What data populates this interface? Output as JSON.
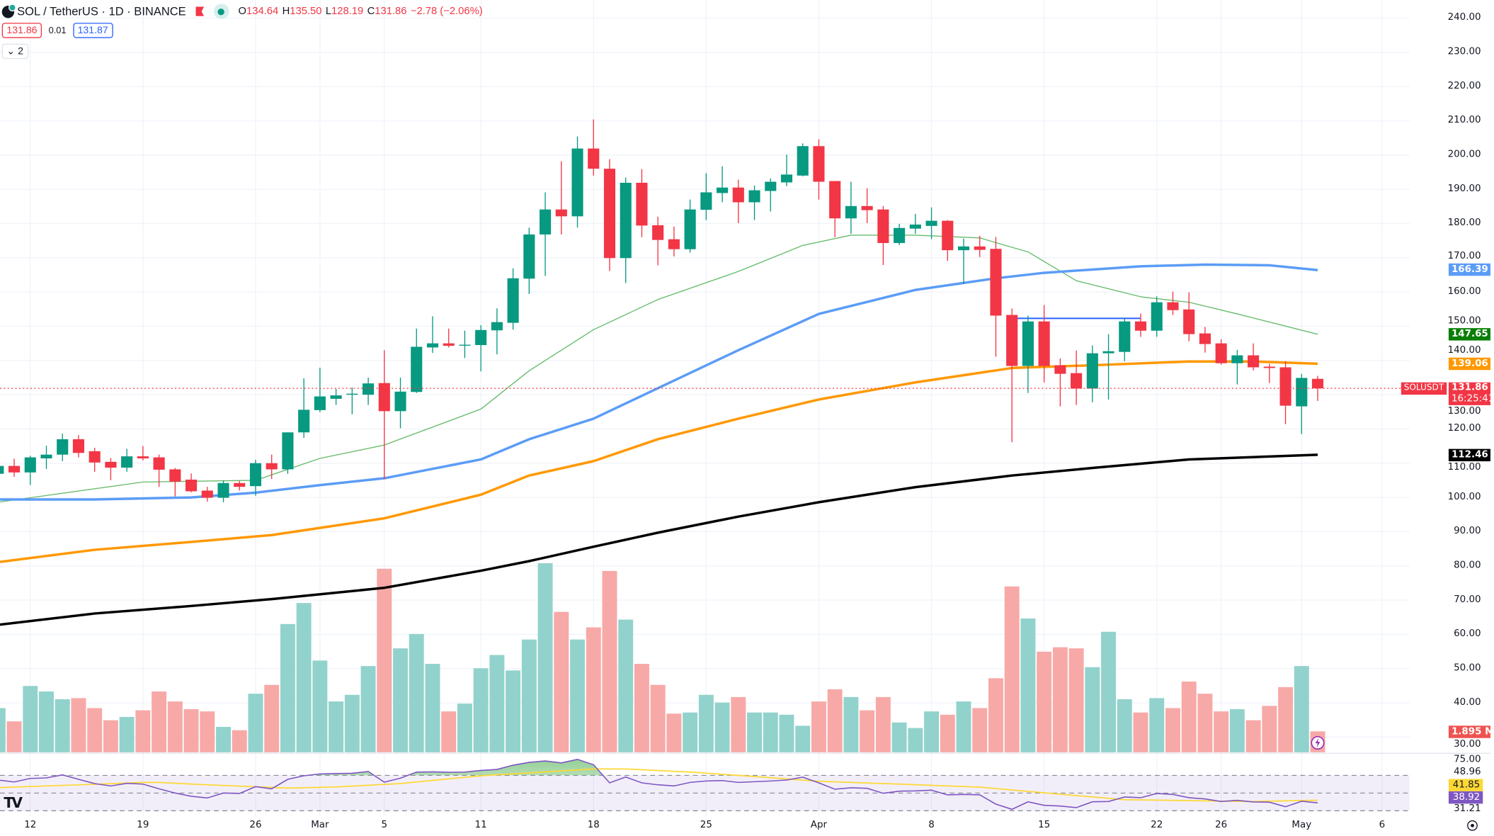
{
  "header": {
    "symbol_title": "SOL / TetherUS · 1D · BINANCE",
    "open_label": "O",
    "open": "134.64",
    "high_label": "H",
    "high": "135.50",
    "low_label": "L",
    "low": "128.19",
    "close_label": "C",
    "close": "131.86",
    "change": "−2.78 (−2.06%)",
    "bid": "131.86",
    "spread": "0.01",
    "ask": "131.87",
    "indicators_toggle": "⌄ 2"
  },
  "price_axis": {
    "ticks": [
      "240.00",
      "230.00",
      "220.00",
      "210.00",
      "200.00",
      "190.00",
      "180.00",
      "170.00",
      "160.00",
      "150.00",
      "140.00",
      "130.00",
      "120.00",
      "110.00",
      "100.00",
      "90.00",
      "80.00",
      "70.00",
      "60.00",
      "50.00",
      "40.00",
      "30.00"
    ],
    "ma_labels": [
      {
        "value": "166.39",
        "color": "#5b9cf6",
        "price": 166.39
      },
      {
        "value": "147.65",
        "color": "#0a7e07",
        "price": 147.65
      },
      {
        "value": "139.06",
        "color": "#ff9800",
        "price": 139.06
      },
      {
        "value": "112.46",
        "color": "#000000",
        "price": 112.46
      }
    ],
    "symbol_tag": "SOLUSDT",
    "last_price": "131.86",
    "countdown": "16:25:41",
    "volume_label": "1.895 M"
  },
  "rsi_axis": {
    "top": "75.00",
    "upper": "48.96",
    "ma_value": "41.85",
    "rsi_value": "38.92",
    "bottom": "31.21"
  },
  "date_axis": [
    {
      "label": "12",
      "date": "Feb 12"
    },
    {
      "label": "19",
      "date": "Feb 19"
    },
    {
      "label": "26",
      "date": "Feb 26"
    },
    {
      "label": "Mar",
      "date": "Mar 1"
    },
    {
      "label": "5",
      "date": "Mar 5"
    },
    {
      "label": "11",
      "date": "Mar 11"
    },
    {
      "label": "18",
      "date": "Mar 18"
    },
    {
      "label": "25",
      "date": "Mar 25"
    },
    {
      "label": "Apr",
      "date": "Apr 1"
    },
    {
      "label": "8",
      "date": "Apr 8"
    },
    {
      "label": "15",
      "date": "Apr 15"
    },
    {
      "label": "22",
      "date": "Apr 22"
    },
    {
      "label": "26",
      "date": "Apr 26"
    },
    {
      "label": "May",
      "date": "May 1"
    },
    {
      "label": "6",
      "date": "May 6"
    }
  ],
  "colors": {
    "up": "#089981",
    "down": "#f23645",
    "up_vol": "#92d2cc",
    "down_vol": "#f7a9a7",
    "rsi": "#7e57c2",
    "rsi_ma": "#fdd835",
    "ray": "#2962ff"
  },
  "icons": {
    "logo": "tradingview-logo",
    "flag": "flag-icon",
    "market_status": "green-dot-icon",
    "alert": "lightning-icon",
    "settings": "settings-icon"
  },
  "chart_data": {
    "type": "candlestick",
    "symbol": "SOLUSDT",
    "ylim": [
      30,
      240
    ],
    "candles_format": [
      "date",
      "open",
      "high",
      "low",
      "close",
      "volume_M"
    ],
    "candles": [
      [
        "Feb 10",
        106.9,
        110,
        105.5,
        109.2,
        4.0
      ],
      [
        "Feb 11",
        109.2,
        111.3,
        106,
        107.3,
        2.8
      ],
      [
        "Feb 12",
        107.3,
        112.2,
        103.6,
        111.7,
        6.0
      ],
      [
        "Feb 13",
        111.4,
        115.1,
        108.3,
        112.5,
        5.5
      ],
      [
        "Feb 14",
        112.5,
        118.6,
        110.6,
        117,
        4.8
      ],
      [
        "Feb 15",
        117,
        118.2,
        111.7,
        113,
        4.9
      ],
      [
        "Feb 16",
        113.5,
        114.5,
        107.5,
        110.2,
        4.0
      ],
      [
        "Feb 17",
        110.4,
        111.5,
        105,
        108.7,
        2.9
      ],
      [
        "Feb 18",
        108.7,
        114.2,
        107.5,
        112,
        3.2
      ],
      [
        "Feb 19",
        112,
        115,
        110.8,
        111.4,
        3.8
      ],
      [
        "Feb 20",
        111.7,
        112.5,
        103.1,
        108.1,
        5.5
      ],
      [
        "Feb 21",
        108.2,
        108.6,
        100.3,
        104.6,
        4.6
      ],
      [
        "Feb 22",
        105.2,
        107,
        101.5,
        101.8,
        3.9
      ],
      [
        "Feb 23",
        102,
        103.1,
        98.8,
        99.9,
        3.7
      ],
      [
        "Feb 24",
        99.9,
        105,
        98.6,
        104.2,
        2.3
      ],
      [
        "Feb 25",
        104.2,
        104.8,
        102,
        103.1,
        2.0
      ],
      [
        "Feb 26",
        103.3,
        111,
        100.5,
        110,
        5.3
      ],
      [
        "Feb 27",
        110,
        112.5,
        105.4,
        108.2,
        6.1
      ],
      [
        "Feb 28",
        108.2,
        119,
        106.9,
        119,
        11.6
      ],
      [
        "Feb 29",
        119,
        134.8,
        117.4,
        125.6,
        13.5
      ],
      [
        "Mar 1",
        125.5,
        137.9,
        124.9,
        129.5,
        8.3
      ],
      [
        "Mar 2",
        128.8,
        131.7,
        127,
        129.8,
        4.6
      ],
      [
        "Mar 3",
        130,
        132.1,
        124.3,
        130.3,
        5.2
      ],
      [
        "Mar 4",
        130,
        135,
        127,
        133.3,
        7.8
      ],
      [
        "Mar 5",
        133.4,
        143,
        105.3,
        125.2,
        16.6
      ],
      [
        "Mar 6",
        125.2,
        135,
        120.2,
        130.9,
        9.4
      ],
      [
        "Mar 7",
        130.8,
        149.3,
        130.5,
        144,
        10.7
      ],
      [
        "Mar 8",
        143.8,
        152.9,
        142.2,
        145,
        8.0
      ],
      [
        "Mar 9",
        145,
        149.3,
        143.8,
        144.3,
        3.7
      ],
      [
        "Mar 10",
        144.4,
        148.7,
        140.7,
        144.6,
        4.4
      ],
      [
        "Mar 11",
        144.5,
        150.3,
        136.8,
        148.9,
        7.6
      ],
      [
        "Mar 12",
        148.8,
        155.2,
        141.8,
        151.2,
        8.8
      ],
      [
        "Mar 13",
        151,
        166.9,
        149,
        164,
        7.4
      ],
      [
        "Mar 14",
        163.9,
        178.8,
        159.4,
        176.8,
        10.2
      ],
      [
        "Mar 15",
        176.8,
        189.1,
        164.7,
        184.1,
        17.1
      ],
      [
        "Mar 16",
        184.1,
        198.2,
        176.8,
        182.1,
        12.7
      ],
      [
        "Mar 17",
        182.1,
        205.4,
        178.8,
        201.9,
        10.2
      ],
      [
        "Mar 18",
        201.9,
        210.4,
        194,
        196,
        11.3
      ],
      [
        "Mar 19",
        196,
        198.8,
        166.1,
        169.9,
        16.4
      ],
      [
        "Mar 20",
        169.9,
        193.4,
        162.6,
        191.9,
        12.0
      ],
      [
        "Mar 21",
        191.9,
        195.9,
        176,
        179.4,
        8.0
      ],
      [
        "Mar 22",
        179.5,
        182,
        167.8,
        175.2,
        6.1
      ],
      [
        "Mar 23",
        175.4,
        179.1,
        170.4,
        172.5,
        3.5
      ],
      [
        "Mar 24",
        172.5,
        187,
        171.5,
        184.1,
        3.6
      ],
      [
        "Mar 25",
        184,
        194.7,
        181,
        189.1,
        5.2
      ],
      [
        "Mar 26",
        188.9,
        196.7,
        186.2,
        190.5,
        4.5
      ],
      [
        "Mar 27",
        190.5,
        192.8,
        180.1,
        186.2,
        5.0
      ],
      [
        "Mar 28",
        186.2,
        191.1,
        181,
        189.7,
        3.6
      ],
      [
        "Mar 29",
        189.5,
        193.2,
        183.5,
        192.2,
        3.6
      ],
      [
        "Mar 30",
        192,
        200.1,
        190.9,
        194.3,
        3.4
      ],
      [
        "Mar 31",
        194,
        203.4,
        193.8,
        202.6,
        2.4
      ],
      [
        "Apr 1",
        202.6,
        204.6,
        187,
        192.2,
        4.6
      ],
      [
        "Apr 2",
        192.4,
        192.4,
        176,
        181.5,
        5.7
      ],
      [
        "Apr 3",
        181.5,
        192.2,
        177,
        185.1,
        5.0
      ],
      [
        "Apr 4",
        185.1,
        190.3,
        180.1,
        183.9,
        3.8
      ],
      [
        "Apr 5",
        184.1,
        185.1,
        167.9,
        174.3,
        5.0
      ],
      [
        "Apr 6",
        174.3,
        179.9,
        173.7,
        178.7,
        2.7
      ],
      [
        "Apr 7",
        178.5,
        182.8,
        177,
        179.7,
        2.2
      ],
      [
        "Apr 8",
        179.3,
        184.7,
        175.4,
        180.8,
        3.7
      ],
      [
        "Apr 9",
        180.8,
        181,
        169.1,
        172.2,
        3.4
      ],
      [
        "Apr 10",
        172.2,
        175.6,
        162.3,
        173.3,
        4.6
      ],
      [
        "Apr 11",
        173.3,
        176.4,
        170.2,
        172.3,
        4.0
      ],
      [
        "Apr 12",
        172.6,
        176.1,
        141.1,
        153.1,
        6.7
      ],
      [
        "Apr 13",
        153.3,
        155.2,
        116.1,
        138.4,
        15.0
      ],
      [
        "Apr 14",
        138.4,
        153.1,
        130.5,
        151.4,
        12.1
      ],
      [
        "Apr 15",
        151.4,
        156.2,
        133.6,
        138.4,
        9.1
      ],
      [
        "Apr 16",
        138.6,
        140.6,
        126.6,
        136.1,
        9.5
      ],
      [
        "Apr 17",
        136.3,
        142.9,
        127,
        131.8,
        9.4
      ],
      [
        "Apr 18",
        131.8,
        144.4,
        127.8,
        142.1,
        7.7
      ],
      [
        "Apr 19",
        142.1,
        147.7,
        128.6,
        142.7,
        10.9
      ],
      [
        "Apr 20",
        142.5,
        152.5,
        139.8,
        151.4,
        4.8
      ],
      [
        "Apr 21",
        151.4,
        153.7,
        146.9,
        148.7,
        3.6
      ],
      [
        "Apr 22",
        148.7,
        158.7,
        146.9,
        157,
        4.9
      ],
      [
        "Apr 23",
        157,
        160.1,
        153.3,
        154.7,
        4.0
      ],
      [
        "Apr 24",
        154.9,
        159.9,
        145.6,
        147.7,
        6.4
      ],
      [
        "Apr 25",
        147.9,
        149.8,
        142.3,
        144.8,
        5.3
      ],
      [
        "Apr 26",
        145,
        146.2,
        138.8,
        139.2,
        3.7
      ],
      [
        "Apr 27",
        139.2,
        143.1,
        133,
        141.5,
        3.9
      ],
      [
        "Apr 28",
        141.5,
        145,
        137.1,
        138,
        2.9
      ],
      [
        "Apr 29",
        138.2,
        139,
        133.4,
        137.8,
        4.2
      ],
      [
        "Apr 30",
        138,
        139.8,
        121.4,
        126.8,
        5.9
      ],
      [
        "May 1",
        126.6,
        136.1,
        118.5,
        134.9,
        7.8
      ],
      [
        "May 2",
        134.64,
        135.5,
        128.19,
        131.86,
        1.895
      ]
    ],
    "moving_averages": [
      {
        "color": "#66bb6a",
        "width": 1,
        "last": 147.65,
        "points": [
          [
            "Feb 10",
            98.6
          ],
          [
            "Feb 19",
            104.5
          ],
          [
            "Feb 26",
            105
          ],
          [
            "Mar 1",
            111.4
          ],
          [
            "Mar 5",
            115.3
          ],
          [
            "Mar 11",
            125.8
          ],
          [
            "Mar 14",
            137
          ],
          [
            "Mar 18",
            149
          ],
          [
            "Mar 22",
            157.8
          ],
          [
            "Mar 27",
            166
          ],
          [
            "Mar 31",
            173.6
          ],
          [
            "Apr 3",
            176.6
          ],
          [
            "Apr 7",
            176.6
          ],
          [
            "Apr 11",
            175.8
          ],
          [
            "Apr 14",
            171.7
          ],
          [
            "Apr 17",
            163.3
          ],
          [
            "Apr 21",
            158.6
          ],
          [
            "Apr 24",
            157
          ],
          [
            "Apr 27",
            153.6
          ],
          [
            "May 2",
            147.65
          ]
        ]
      },
      {
        "color": "#5b9cf6",
        "width": 2.6,
        "last": 166.39,
        "points": [
          [
            "Feb 10",
            99.4
          ],
          [
            "Feb 16",
            99.4
          ],
          [
            "Feb 22",
            100
          ],
          [
            "Feb 26",
            101.4
          ],
          [
            "Mar 1",
            103.6
          ],
          [
            "Mar 5",
            105.6
          ],
          [
            "Mar 11",
            111.1
          ],
          [
            "Mar 14",
            117
          ],
          [
            "Mar 18",
            123
          ],
          [
            "Mar 22",
            131.9
          ],
          [
            "Mar 27",
            143
          ],
          [
            "Apr 1",
            153.6
          ],
          [
            "Apr 7",
            160.6
          ],
          [
            "Apr 12",
            164
          ],
          [
            "Apr 15",
            165.6
          ],
          [
            "Apr 21",
            167.5
          ],
          [
            "Apr 25",
            168
          ],
          [
            "Apr 29",
            167.8
          ],
          [
            "May 2",
            166.39
          ]
        ]
      },
      {
        "color": "#ff9800",
        "width": 2.6,
        "last": 139.06,
        "points": [
          [
            "Feb 10",
            81.1
          ],
          [
            "Feb 16",
            84.7
          ],
          [
            "Feb 22",
            87
          ],
          [
            "Feb 27",
            89
          ],
          [
            "Mar 5",
            93.9
          ],
          [
            "Mar 11",
            100.8
          ],
          [
            "Mar 14",
            106.4
          ],
          [
            "Mar 18",
            110.6
          ],
          [
            "Mar 22",
            117
          ],
          [
            "Mar 27",
            123
          ],
          [
            "Apr 1",
            128.6
          ],
          [
            "Apr 7",
            133.6
          ],
          [
            "Apr 13",
            137.8
          ],
          [
            "Apr 18",
            138.6
          ],
          [
            "Apr 24",
            139.7
          ],
          [
            "Apr 28",
            139.7
          ],
          [
            "May 2",
            139.06
          ]
        ]
      },
      {
        "color": "#000000",
        "width": 2.6,
        "last": 112.46,
        "points": [
          [
            "Feb 10",
            62.8
          ],
          [
            "Feb 16",
            66.1
          ],
          [
            "Feb 22",
            68.3
          ],
          [
            "Feb 27",
            70.3
          ],
          [
            "Mar 5",
            73.6
          ],
          [
            "Mar 11",
            78.6
          ],
          [
            "Mar 14",
            81.4
          ],
          [
            "Mar 18",
            85.6
          ],
          [
            "Mar 22",
            89.7
          ],
          [
            "Mar 27",
            94.4
          ],
          [
            "Apr 1",
            98.6
          ],
          [
            "Apr 7",
            103
          ],
          [
            "Apr 13",
            106.4
          ],
          [
            "Apr 18",
            108.6
          ],
          [
            "Apr 24",
            111.1
          ],
          [
            "May 2",
            112.46
          ]
        ]
      }
    ],
    "horizontal_ray": {
      "from": "Apr 13",
      "to": "Apr 21",
      "price": 152.3
    },
    "rsi": {
      "levels": [
        70,
        50,
        30
      ],
      "values": [
        64.7,
        62.5,
        66.5,
        67.1,
        70.5,
        65.5,
        60.7,
        58,
        60.9,
        60.1,
        54.8,
        50,
        46.3,
        44.4,
        50,
        49.5,
        57.2,
        54.8,
        65.5,
        69.5,
        71.6,
        72.1,
        72.4,
        74.3,
        62.3,
        66.8,
        73.7,
        74,
        73.5,
        73.7,
        75.6,
        76.7,
        81.5,
        84.7,
        86.3,
        84.1,
        88.1,
        82,
        61.5,
        68.1,
        61.5,
        59.3,
        58,
        62,
        63.6,
        64.1,
        62,
        62.8,
        63.6,
        64.7,
        67.9,
        61.5,
        54.3,
        55.9,
        55.3,
        49.7,
        52.1,
        52.4,
        53.2,
        47.9,
        48.4,
        47.9,
        37.5,
        31.6,
        40.1,
        36.1,
        35.3,
        33.5,
        40.1,
        40.4,
        45.5,
        44.7,
        49.5,
        48.4,
        44.7,
        43.3,
        40.4,
        41.7,
        39.9,
        39.6,
        34.5,
        40.7,
        38.92
      ],
      "ma_points": [
        [
          "Feb 10",
          56.1
        ],
        [
          "Feb 16",
          59.9
        ],
        [
          "Feb 19",
          62
        ],
        [
          "Feb 20",
          62
        ],
        [
          "Feb 23",
          59.3
        ],
        [
          "Feb 28",
          55.6
        ],
        [
          "Mar 2",
          56.9
        ],
        [
          "Mar 6",
          60.7
        ],
        [
          "Mar 11",
          69.5
        ],
        [
          "Mar 18",
          77.2
        ],
        [
          "Mar 20",
          77.2
        ],
        [
          "Mar 24",
          73.7
        ],
        [
          "Mar 27",
          70
        ],
        [
          "Apr 1",
          63.3
        ],
        [
          "Apr 6",
          60.1
        ],
        [
          "Apr 11",
          56.7
        ],
        [
          "Apr 16",
          48.7
        ],
        [
          "Apr 20",
          42.5
        ],
        [
          "Apr 25",
          41.2
        ],
        [
          "Apr 28",
          40.4
        ],
        [
          "May 2",
          41.85
        ]
      ]
    }
  }
}
